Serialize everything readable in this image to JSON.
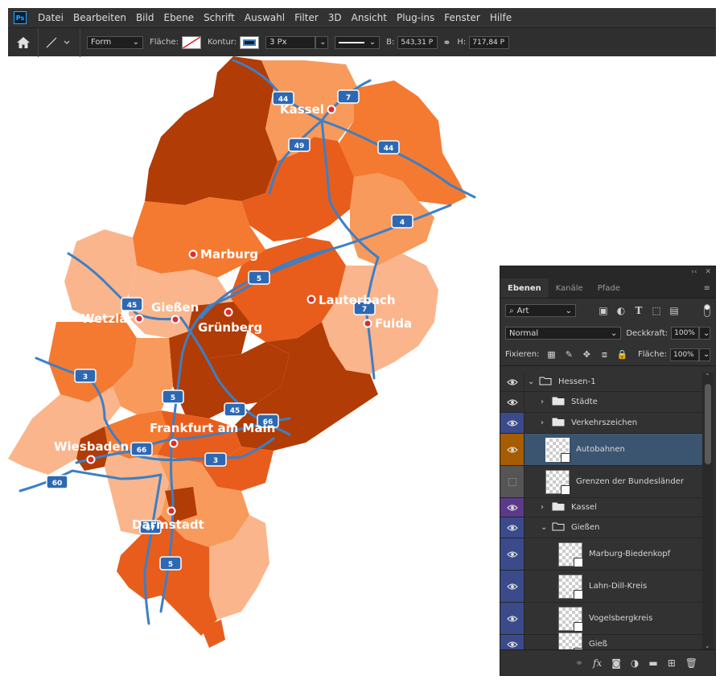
{
  "app": {
    "logo": "Ps"
  },
  "menu": [
    "Datei",
    "Bearbeiten",
    "Bild",
    "Ebene",
    "Schrift",
    "Auswahl",
    "Filter",
    "3D",
    "Ansicht",
    "Plug-ins",
    "Fenster",
    "Hilfe"
  ],
  "options": {
    "shape_mode": "Form",
    "fill_label": "Fläche:",
    "stroke_label": "Kontur:",
    "stroke_width": "3 Px",
    "width_label": "B:",
    "width_value": "543,31 P",
    "height_label": "H:",
    "height_value": "717,84 P",
    "stroke_color": "#3d7fc4"
  },
  "map": {
    "cities": [
      "Kassel",
      "Marburg",
      "Gießen",
      "Wetzlar",
      "Grünberg",
      "Lauterbach",
      "Fulda",
      "Frankfurt am Main",
      "Wiesbaden",
      "Darmstadt"
    ],
    "shields": [
      "44",
      "7",
      "49",
      "44",
      "4",
      "5",
      "45",
      "7",
      "3",
      "5",
      "45",
      "66",
      "66",
      "3",
      "60",
      "67",
      "5"
    ],
    "colors": {
      "dark": "#b23c05",
      "medium": "#e85d1c",
      "orange": "#f47a31",
      "light": "#f89a5c",
      "pale": "#fbb58c",
      "road": "#3d7fc4"
    }
  },
  "layers_panel": {
    "tabs": [
      "Ebenen",
      "Kanäle",
      "Pfade"
    ],
    "filter_kind": "Art",
    "blend_mode": "Normal",
    "opacity_label": "Deckkraft:",
    "opacity_value": "100%",
    "lock_label": "Fixieren:",
    "fill_label": "Fläche:",
    "fill_value": "100%",
    "layers": [
      {
        "name": "Hessen-1",
        "type": "group",
        "indent": 0,
        "expanded": true,
        "eye_color": "#323232"
      },
      {
        "name": "Städte",
        "type": "group",
        "indent": 1,
        "expanded": false,
        "eye_color": "#323232"
      },
      {
        "name": "Verkehrszeichen",
        "type": "group",
        "indent": 1,
        "expanded": false,
        "eye_color": "#3a4a8a"
      },
      {
        "name": "Autobahnen",
        "type": "shape",
        "indent": 1,
        "selected": true,
        "eye_color": "#a65c00"
      },
      {
        "name": "Grenzen der Bundesländer",
        "type": "shape",
        "indent": 1,
        "hidden": true,
        "eye_color": "#555555"
      },
      {
        "name": "Kassel",
        "type": "group",
        "indent": 1,
        "expanded": false,
        "eye_color": "#5b3a8a"
      },
      {
        "name": "Gießen",
        "type": "group",
        "indent": 1,
        "expanded": true,
        "eye_color": "#3a4a8a"
      },
      {
        "name": "Marburg-Biedenkopf",
        "type": "shape",
        "indent": 2,
        "eye_color": "#3a4a8a"
      },
      {
        "name": "Lahn-Dill-Kreis",
        "type": "shape",
        "indent": 2,
        "eye_color": "#3a4a8a"
      },
      {
        "name": "Vogelsbergkreis",
        "type": "shape",
        "indent": 2,
        "eye_color": "#3a4a8a"
      },
      {
        "name": "Gieß",
        "type": "shape",
        "indent": 2,
        "eye_color": "#3a4a8a"
      }
    ]
  }
}
